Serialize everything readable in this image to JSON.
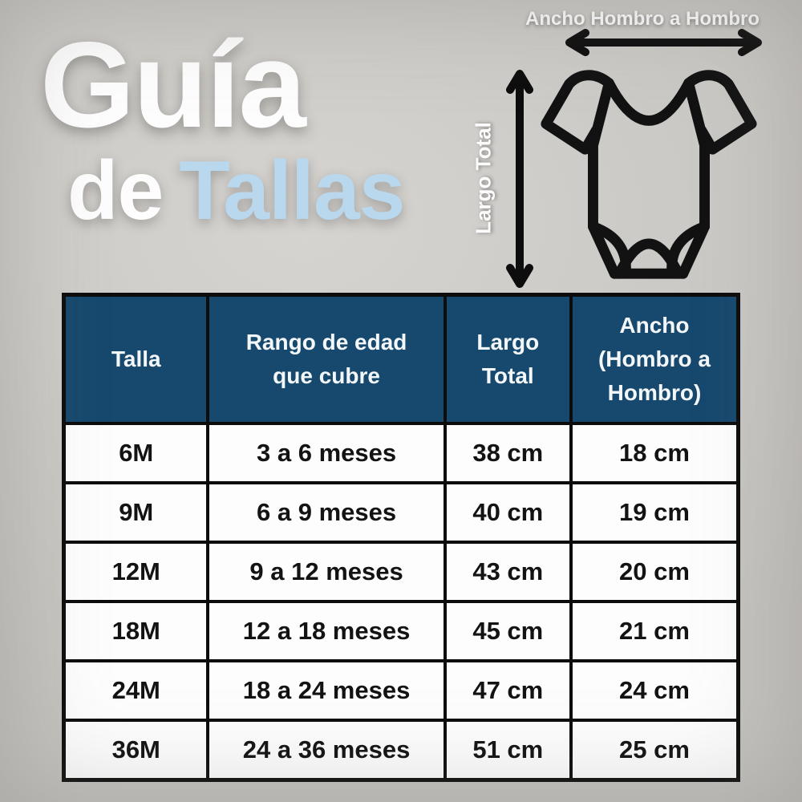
{
  "title": {
    "line1": "Guía",
    "line2_word1": "de",
    "line2_word2": "Tallas"
  },
  "diagram": {
    "top_arrow_label": "Ancho Hombro a Hombro",
    "side_arrow_label": "Largo Total",
    "icon": "baby-bodysuit-outline-icon"
  },
  "chart_data": {
    "type": "table",
    "title": "Guía de Tallas",
    "columns": [
      "Talla",
      "Rango de edad que cubre",
      "Largo Total",
      "Ancho (Hombro a Hombro)"
    ],
    "rows": [
      [
        "6M",
        "3 a 6 meses",
        "38 cm",
        "18 cm"
      ],
      [
        "9M",
        "6 a 9 meses",
        "40 cm",
        "19 cm"
      ],
      [
        "12M",
        "9 a 12 meses",
        "43 cm",
        "20 cm"
      ],
      [
        "18M",
        "12 a 18 meses",
        "45 cm",
        "21 cm"
      ],
      [
        "24M",
        "18 a 24 meses",
        "47 cm",
        "24 cm"
      ],
      [
        "36M",
        "24 a 36 meses",
        "51 cm",
        "25 cm"
      ]
    ],
    "units": "cm",
    "layout": "header row dark blue, data rows white, black 4px grid borders"
  },
  "colors": {
    "background_gray": "#cbc9c5",
    "header_blue": "#17496e",
    "accent_light_blue": "#b9d8ee",
    "title_white": "#fdfdfd",
    "line_black": "#0c0c0c"
  }
}
